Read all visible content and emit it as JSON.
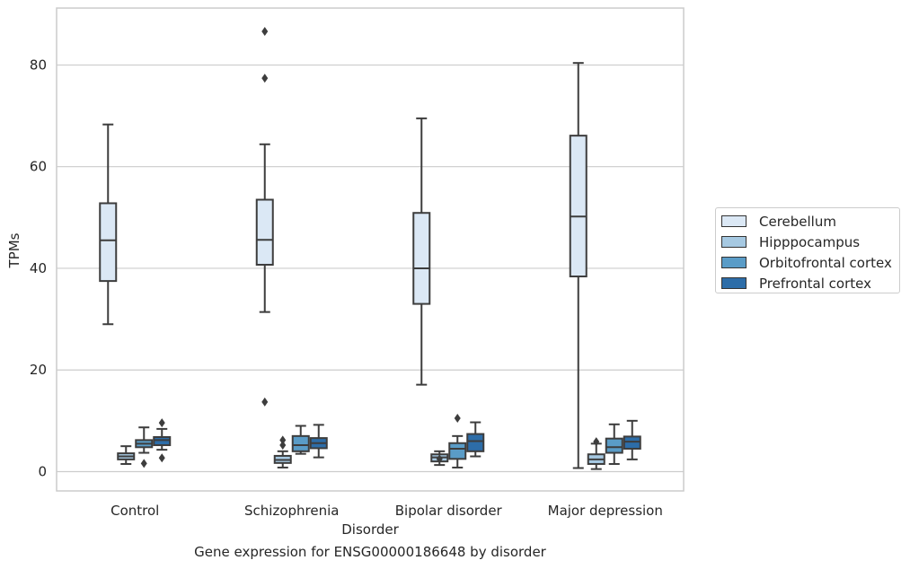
{
  "caption": "Gene expression for ENSG00000186648 by disorder",
  "chart_data": {
    "type": "box",
    "xlabel": "Disorder",
    "ylabel": "TPMs",
    "ylim": [
      -3.8,
      91.2
    ],
    "yticks": [
      0,
      20,
      40,
      60,
      80
    ],
    "grid": "horizontal",
    "legend_position": "right",
    "categories": [
      "Control",
      "Schizophrenia",
      "Bipolar disorder",
      "Major depression"
    ],
    "series": [
      {
        "name": "Cerebellum",
        "color": "#dbe8f5",
        "boxes": [
          {
            "whisker_low": 29.0,
            "q1": 37.5,
            "median": 45.5,
            "q3": 52.8,
            "whisker_high": 68.3,
            "outliers": []
          },
          {
            "whisker_low": 31.4,
            "q1": 40.7,
            "median": 45.6,
            "q3": 53.5,
            "whisker_high": 64.4,
            "outliers": [
              86.6,
              77.4,
              13.7
            ]
          },
          {
            "whisker_low": 17.1,
            "q1": 33.0,
            "median": 40.0,
            "q3": 50.9,
            "whisker_high": 69.5,
            "outliers": []
          },
          {
            "whisker_low": 0.7,
            "q1": 38.4,
            "median": 50.2,
            "q3": 66.1,
            "whisker_high": 80.4,
            "outliers": []
          }
        ]
      },
      {
        "name": "Hipppocampus",
        "color": "#a6c9e2",
        "boxes": [
          {
            "whisker_low": 1.5,
            "q1": 2.4,
            "median": 3.0,
            "q3": 3.6,
            "whisker_high": 5.0,
            "outliers": []
          },
          {
            "whisker_low": 0.8,
            "q1": 1.7,
            "median": 2.3,
            "q3": 3.1,
            "whisker_high": 4.0,
            "outliers": [
              5.2,
              6.2
            ]
          },
          {
            "whisker_low": 1.3,
            "q1": 2.0,
            "median": 2.8,
            "q3": 3.4,
            "whisker_high": 4.0,
            "outliers": [
              2.5
            ]
          },
          {
            "whisker_low": 0.5,
            "q1": 1.5,
            "median": 2.4,
            "q3": 3.4,
            "whisker_high": 5.5,
            "outliers": [
              5.9
            ]
          }
        ]
      },
      {
        "name": "Orbitofrontal cortex",
        "color": "#5a9cc7",
        "boxes": [
          {
            "whisker_low": 3.7,
            "q1": 4.8,
            "median": 5.5,
            "q3": 6.2,
            "whisker_high": 8.7,
            "outliers": [
              1.6
            ]
          },
          {
            "whisker_low": 3.5,
            "q1": 4.0,
            "median": 5.2,
            "q3": 7.0,
            "whisker_high": 9.0,
            "outliers": []
          },
          {
            "whisker_low": 0.8,
            "q1": 2.5,
            "median": 4.5,
            "q3": 5.6,
            "whisker_high": 7.0,
            "outliers": [
              10.5
            ]
          },
          {
            "whisker_low": 1.5,
            "q1": 3.7,
            "median": 4.8,
            "q3": 6.5,
            "whisker_high": 9.3,
            "outliers": []
          }
        ]
      },
      {
        "name": "Prefrontal cortex",
        "color": "#2d6da8",
        "boxes": [
          {
            "whisker_low": 4.3,
            "q1": 5.2,
            "median": 6.2,
            "q3": 6.8,
            "whisker_high": 8.4,
            "outliers": [
              9.6,
              2.7
            ]
          },
          {
            "whisker_low": 2.8,
            "q1": 4.6,
            "median": 5.6,
            "q3": 6.6,
            "whisker_high": 9.2,
            "outliers": []
          },
          {
            "whisker_low": 3.0,
            "q1": 4.0,
            "median": 6.0,
            "q3": 7.4,
            "whisker_high": 9.7,
            "outliers": []
          },
          {
            "whisker_low": 2.4,
            "q1": 4.5,
            "median": 5.9,
            "q3": 6.9,
            "whisker_high": 10.0,
            "outliers": []
          }
        ]
      }
    ]
  }
}
